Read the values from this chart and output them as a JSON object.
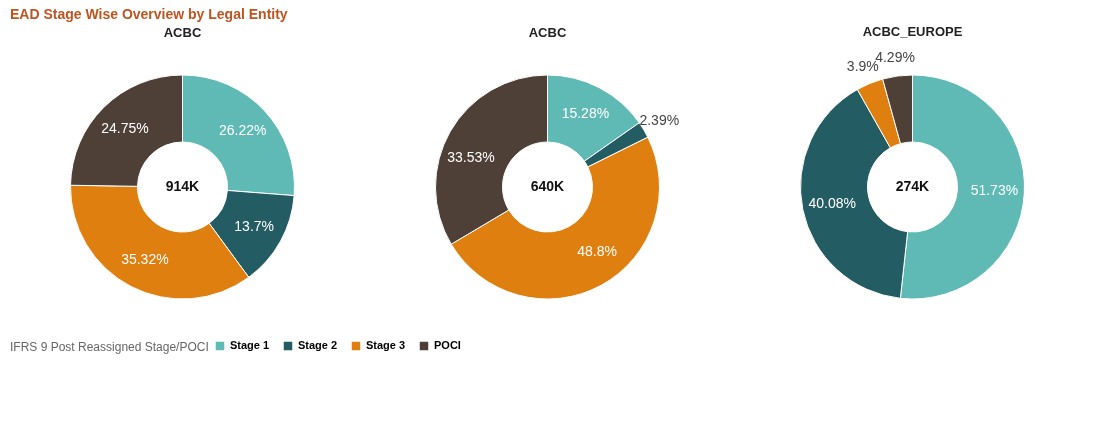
{
  "chart_data": [
    {
      "type": "donut",
      "title": "EAD Stage Wise Overview by Legal Entity",
      "subtitle": "ACBC",
      "categories": [
        "Stage 1",
        "Stage 2",
        "Stage 3",
        "POCI"
      ],
      "values": [
        26.22,
        13.7,
        35.32,
        24.75
      ],
      "value_labels": [
        "26.22%",
        "13.7%",
        "35.32%",
        "24.75%"
      ],
      "colors": [
        "#5fb9b4",
        "#245c63",
        "#de7f10",
        "#4e4037"
      ],
      "annotations": [
        "914K"
      ],
      "legend": "bottom",
      "legend_title": "IFRS 9 Post Reassigned Stage/POCI"
    },
    {
      "type": "donut",
      "subtitle": "ACBC",
      "values": [
        15.28,
        2.39,
        48.8,
        33.53
      ],
      "value_labels": [
        "15.28%",
        "2.39%",
        "48.8%",
        "33.53%"
      ],
      "colors": [
        "#5fb9b4",
        "#245c63",
        "#de7f10",
        "#4e4037"
      ],
      "annotations": [
        "640K"
      ]
    },
    {
      "type": "donut",
      "subtitle": "ACBC_EUROPE",
      "values": [
        51.73,
        40.08,
        3.9,
        4.29
      ],
      "value_labels": [
        "51.73%",
        "40.08%",
        "3.9%",
        "4.29%"
      ],
      "colors": [
        "#5fb9b4",
        "#245c63",
        "#de7f10",
        "#4e4037"
      ],
      "annotations": [
        "274K"
      ]
    }
  ]
}
